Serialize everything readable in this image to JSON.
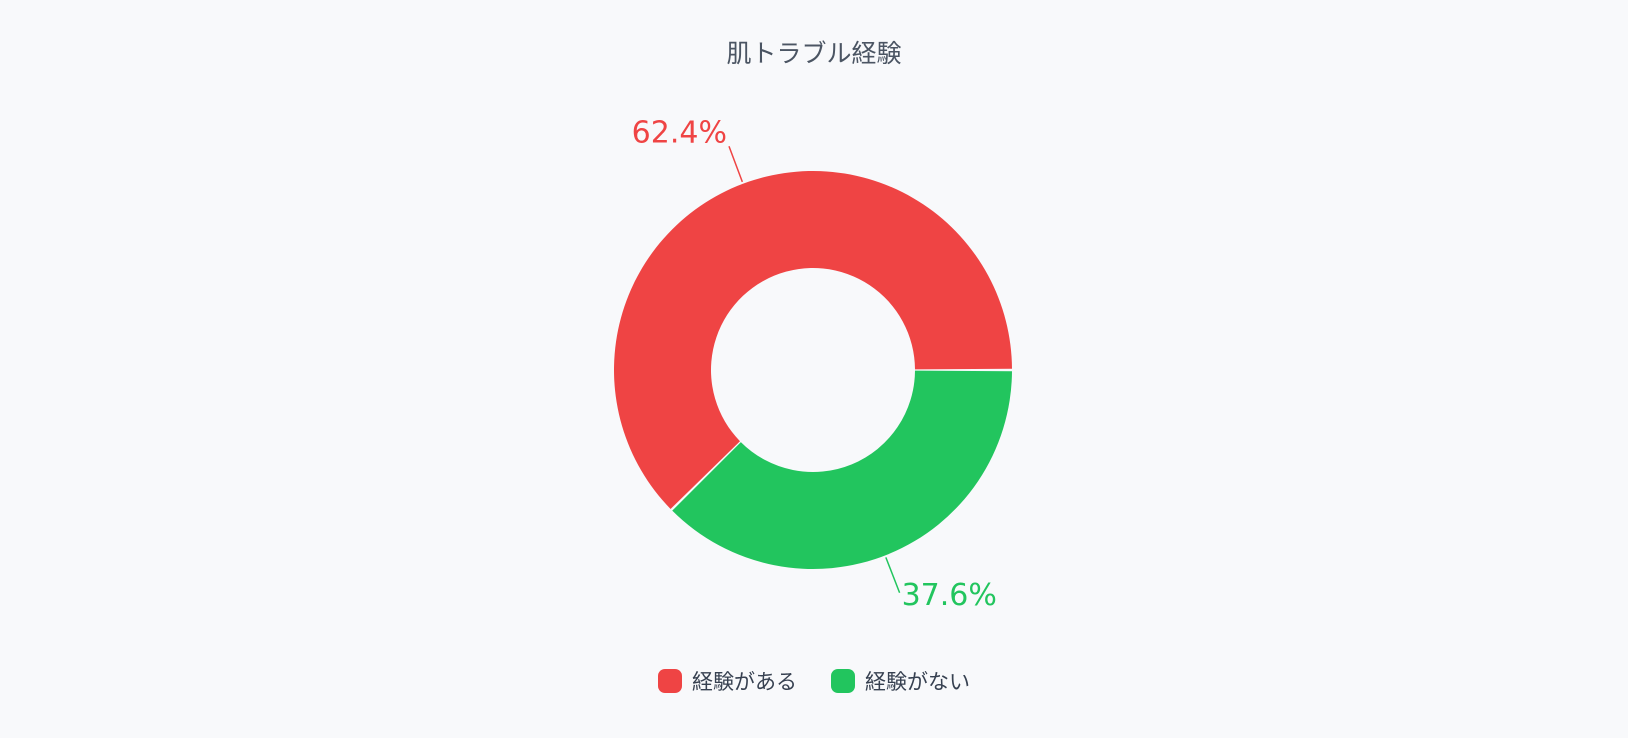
{
  "chart_data": {
    "type": "pie",
    "title": "肌トラブル経験",
    "series": [
      {
        "name": "経験がある",
        "value": 62.4,
        "label": "62.4%",
        "color": "#ef4444"
      },
      {
        "name": "経験がない",
        "value": 37.6,
        "label": "37.6%",
        "color": "#22c55e"
      }
    ],
    "legend_position": "bottom"
  }
}
